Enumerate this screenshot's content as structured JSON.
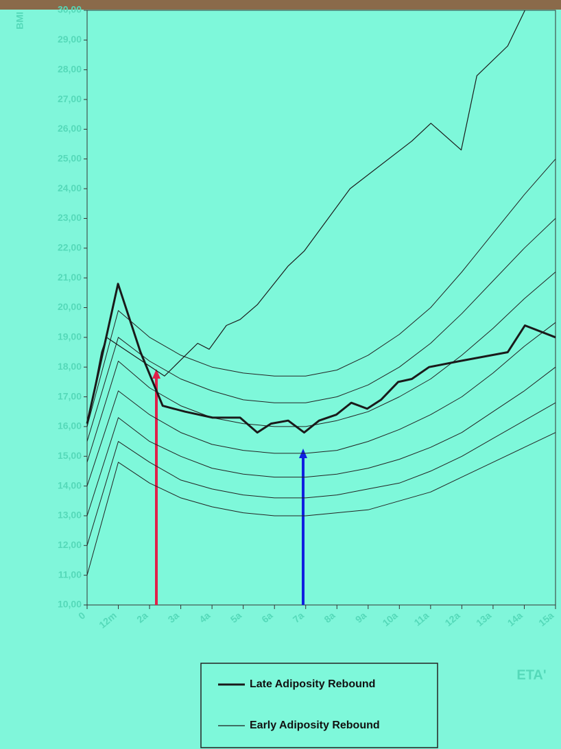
{
  "chart_data": {
    "type": "line",
    "y_label": "BMI",
    "x_label": "ETA'",
    "xlim": [
      0,
      15
    ],
    "ylim": [
      10,
      30
    ],
    "xticks": [
      0,
      {
        "value": 1,
        "label": "12m"
      },
      {
        "value": 2,
        "label": "2a"
      },
      {
        "value": 3,
        "label": "3a"
      },
      {
        "value": 4,
        "label": "4a"
      },
      {
        "value": 5,
        "label": "5a"
      },
      {
        "value": 6,
        "label": "6a"
      },
      {
        "value": 7,
        "label": "7a"
      },
      {
        "value": 8,
        "label": "8a"
      },
      {
        "value": 9,
        "label": "9a"
      },
      {
        "value": 10,
        "label": "10a"
      },
      {
        "value": 11,
        "label": "11a"
      },
      {
        "value": 12,
        "label": "12a"
      },
      {
        "value": 13,
        "label": "13a"
      },
      {
        "value": 14,
        "label": "14a"
      },
      {
        "value": 15,
        "label": "15a"
      }
    ],
    "yticks": [
      {
        "value": 10,
        "label": "10,00"
      },
      {
        "value": 11,
        "label": "11,00"
      },
      {
        "value": 12,
        "label": "12,00"
      },
      {
        "value": 13,
        "label": "13,00"
      },
      {
        "value": 14,
        "label": "14,00"
      },
      {
        "value": 15,
        "label": "15,00"
      },
      {
        "value": 16,
        "label": "16,00"
      },
      {
        "value": 17,
        "label": "17,00"
      },
      {
        "value": 18,
        "label": "18,00"
      },
      {
        "value": 19,
        "label": "19,00"
      },
      {
        "value": 20,
        "label": "20,00"
      },
      {
        "value": 21,
        "label": "21,00"
      },
      {
        "value": 22,
        "label": "22,00"
      },
      {
        "value": 23,
        "label": "23,00"
      },
      {
        "value": 24,
        "label": "24,00"
      },
      {
        "value": 25,
        "label": "25,00"
      },
      {
        "value": 26,
        "label": "26,00"
      },
      {
        "value": 27,
        "label": "27,00"
      },
      {
        "value": 28,
        "label": "28,00"
      },
      {
        "value": 29,
        "label": "29,00"
      },
      {
        "value": 30,
        "label": "30,00"
      }
    ],
    "series": [
      {
        "name": "Late Adiposity Rebound",
        "color": "#1a1a1a",
        "width": 3,
        "x": [
          0,
          0.99,
          1.71,
          2.42,
          3.14,
          4.02,
          4.9,
          5.45,
          5.89,
          6.44,
          6.95,
          7.43,
          7.98,
          8.46,
          8.97,
          9.41,
          9.96,
          10.4,
          10.95,
          11.93,
          13.47,
          14.02,
          15
        ],
        "values": [
          16.1,
          20.8,
          18.5,
          16.7,
          16.5,
          16.3,
          16.3,
          15.8,
          16.1,
          16.2,
          15.8,
          16.2,
          16.4,
          16.8,
          16.6,
          16.9,
          17.5,
          17.6,
          18.0,
          18.2,
          18.5,
          19.4,
          19.0
        ]
      },
      {
        "name": "Early Adiposity Rebound",
        "color": "#1a1a1a",
        "width": 1.2,
        "x": [
          0,
          0.46,
          0.62,
          2.48,
          3.54,
          3.91,
          4.46,
          4.9,
          5.45,
          6.44,
          6.95,
          8.42,
          10.4,
          11.01,
          11.98,
          12.48,
          13.47,
          14.02
        ],
        "values": [
          16.0,
          18.5,
          19.0,
          17.7,
          18.8,
          18.6,
          19.4,
          19.6,
          20.1,
          21.4,
          21.9,
          24.0,
          25.6,
          26.2,
          25.3,
          27.8,
          28.8,
          30.0
        ]
      }
    ],
    "reference_x": [
      0,
      1,
      2,
      3,
      4,
      5,
      6,
      7,
      8,
      9,
      10,
      11,
      12,
      13,
      14,
      15
    ],
    "reference_color": "#222222",
    "reference_curves": [
      [
        16.0,
        19.9,
        19.0,
        18.4,
        18.0,
        17.8,
        17.7,
        17.7,
        17.9,
        18.4,
        19.1,
        20.0,
        21.2,
        22.5,
        23.8,
        25.0
      ],
      [
        15.5,
        19.0,
        18.2,
        17.6,
        17.2,
        16.9,
        16.8,
        16.8,
        17.0,
        17.4,
        18.0,
        18.8,
        19.8,
        20.9,
        22.0,
        23.0
      ],
      [
        14.8,
        18.2,
        17.3,
        16.7,
        16.3,
        16.1,
        16.0,
        16.0,
        16.2,
        16.5,
        17.0,
        17.6,
        18.4,
        19.3,
        20.3,
        21.2
      ],
      [
        14.0,
        17.2,
        16.4,
        15.8,
        15.4,
        15.2,
        15.1,
        15.1,
        15.2,
        15.5,
        15.9,
        16.4,
        17.0,
        17.8,
        18.7,
        19.5
      ],
      [
        13.0,
        16.3,
        15.5,
        15.0,
        14.6,
        14.4,
        14.3,
        14.3,
        14.4,
        14.6,
        14.9,
        15.3,
        15.8,
        16.5,
        17.2,
        18.0
      ],
      [
        12.0,
        15.5,
        14.8,
        14.2,
        13.9,
        13.7,
        13.6,
        13.6,
        13.7,
        13.9,
        14.1,
        14.5,
        15.0,
        15.6,
        16.2,
        16.8
      ],
      [
        11.0,
        14.8,
        14.1,
        13.6,
        13.3,
        13.1,
        13.0,
        13.0,
        13.1,
        13.2,
        13.5,
        13.8,
        14.3,
        14.8,
        15.3,
        15.8
      ]
    ]
  }
}
